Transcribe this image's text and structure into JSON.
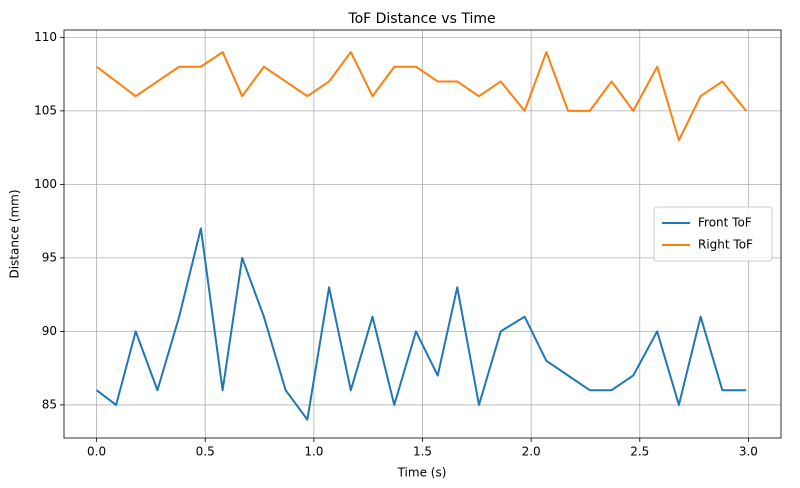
{
  "chart_data": {
    "type": "line",
    "title": "ToF Distance vs Time",
    "xlabel": "Time (s)",
    "ylabel": "Distance (mm)",
    "x": [
      0.0,
      0.09,
      0.18,
      0.28,
      0.38,
      0.48,
      0.58,
      0.67,
      0.77,
      0.87,
      0.97,
      1.07,
      1.17,
      1.27,
      1.37,
      1.47,
      1.57,
      1.66,
      1.76,
      1.86,
      1.97,
      2.07,
      2.17,
      2.27,
      2.37,
      2.47,
      2.58,
      2.68,
      2.78,
      2.88,
      2.99
    ],
    "series": [
      {
        "name": "Front ToF",
        "color": "#1f77b4",
        "values": [
          86,
          85,
          90,
          86,
          91,
          97,
          86,
          95,
          91,
          86,
          84,
          93,
          86,
          91,
          85,
          90,
          87,
          93,
          85,
          90,
          91,
          88,
          87,
          86,
          86,
          87,
          90,
          85,
          91,
          86,
          86
        ]
      },
      {
        "name": "Right ToF",
        "color": "#ff7f0e",
        "values": [
          108,
          107,
          106,
          107,
          108,
          108,
          109,
          106,
          108,
          107,
          106,
          107,
          109,
          106,
          108,
          108,
          107,
          107,
          106,
          107,
          105,
          109,
          105,
          105,
          107,
          105,
          108,
          103,
          106,
          107,
          105
        ]
      }
    ],
    "xlim": [
      -0.15,
      3.15
    ],
    "ylim": [
      82.75,
      110.5
    ],
    "xticks": [
      {
        "value": 0,
        "label": "0.0"
      },
      {
        "value": 0.5,
        "label": "0.5"
      },
      {
        "value": 1,
        "label": "1.0"
      },
      {
        "value": 1.5,
        "label": "1.5"
      },
      {
        "value": 2,
        "label": "2.0"
      },
      {
        "value": 2.5,
        "label": "2.5"
      },
      {
        "value": 3,
        "label": "3.0"
      }
    ],
    "yticks": [
      85,
      90,
      95,
      100,
      105,
      110
    ],
    "grid": true,
    "legend": "center right"
  }
}
